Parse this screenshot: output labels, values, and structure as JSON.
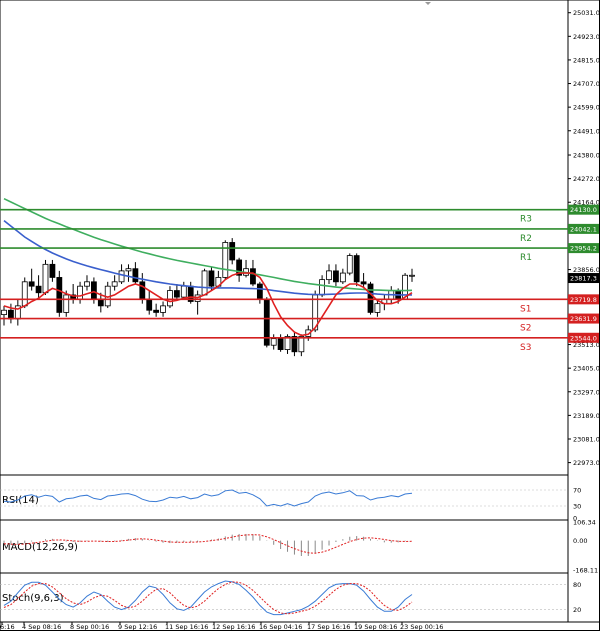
{
  "chart_data": {
    "type": "candlestick",
    "symbol": "",
    "price_axis": {
      "ylim": [
        22930,
        25080
      ],
      "ticks": [
        "25031.0",
        "24923.0",
        "24815.0",
        "24707.0",
        "24599.0",
        "24491.0",
        "24380.0",
        "24272.0",
        "24164.0",
        "23856.0",
        "23621.0",
        "23513.0",
        "23405.0",
        "23297.0",
        "23189.0",
        "23081.0",
        "22973.0"
      ]
    },
    "last_price": "23817.3",
    "levels": [
      {
        "name": "R3",
        "value": 24130.0,
        "label": "24130.0",
        "color": "#2e8b2e"
      },
      {
        "name": "R2",
        "value": 24042.1,
        "label": "24042.1",
        "color": "#2e8b2e"
      },
      {
        "name": "R1",
        "value": 23954.2,
        "label": "23954.2",
        "color": "#2e8b2e"
      },
      {
        "name": "S1",
        "value": 23719.8,
        "label": "23719.8",
        "color": "#d42020"
      },
      {
        "name": "S2",
        "value": 23631.9,
        "label": "23631.9",
        "color": "#d42020"
      },
      {
        "name": "S3",
        "value": 23544.0,
        "label": "23544.0",
        "color": "#d42020"
      }
    ],
    "time_axis": [
      "6:16",
      "4 Sep 08:16",
      "8 Sep 00:16",
      "9 Sep 12:16",
      "11 Sep 16:16",
      "12 Sep 16:16",
      "16 Sep 04:16",
      "17 Sep 16:16",
      "19 Sep 08:16",
      "23 Sep 00:16"
    ],
    "candles": [
      [
        23650,
        23690,
        23600,
        23670
      ],
      [
        23670,
        23700,
        23610,
        23630
      ],
      [
        23630,
        23720,
        23600,
        23690
      ],
      [
        23690,
        23820,
        23680,
        23800
      ],
      [
        23800,
        23860,
        23760,
        23780
      ],
      [
        23780,
        23830,
        23720,
        23750
      ],
      [
        23750,
        23900,
        23740,
        23880
      ],
      [
        23880,
        23900,
        23800,
        23820
      ],
      [
        23820,
        23850,
        23640,
        23660
      ],
      [
        23660,
        23760,
        23640,
        23740
      ],
      [
        23740,
        23790,
        23700,
        23720
      ],
      [
        23720,
        23800,
        23700,
        23780
      ],
      [
        23780,
        23830,
        23760,
        23800
      ],
      [
        23800,
        23820,
        23700,
        23720
      ],
      [
        23720,
        23750,
        23660,
        23690
      ],
      [
        23690,
        23800,
        23680,
        23780
      ],
      [
        23780,
        23830,
        23760,
        23800
      ],
      [
        23800,
        23880,
        23790,
        23850
      ],
      [
        23850,
        23880,
        23800,
        23860
      ],
      [
        23860,
        23890,
        23790,
        23800
      ],
      [
        23800,
        23840,
        23700,
        23720
      ],
      [
        23720,
        23760,
        23650,
        23670
      ],
      [
        23670,
        23700,
        23640,
        23660
      ],
      [
        23660,
        23710,
        23640,
        23690
      ],
      [
        23690,
        23780,
        23680,
        23760
      ],
      [
        23760,
        23790,
        23720,
        23730
      ],
      [
        23730,
        23800,
        23720,
        23780
      ],
      [
        23780,
        23800,
        23700,
        23710
      ],
      [
        23710,
        23760,
        23650,
        23740
      ],
      [
        23740,
        23860,
        23740,
        23850
      ],
      [
        23850,
        23870,
        23760,
        23780
      ],
      [
        23780,
        23850,
        23770,
        23820
      ],
      [
        23820,
        23990,
        23810,
        23980
      ],
      [
        23980,
        24000,
        23880,
        23900
      ],
      [
        23900,
        23910,
        23800,
        23830
      ],
      [
        23830,
        23900,
        23820,
        23860
      ],
      [
        23860,
        23900,
        23780,
        23790
      ],
      [
        23790,
        23800,
        23700,
        23720
      ],
      [
        23720,
        23730,
        23500,
        23510
      ],
      [
        23510,
        23560,
        23490,
        23540
      ],
      [
        23540,
        23560,
        23480,
        23490
      ],
      [
        23490,
        23560,
        23470,
        23550
      ],
      [
        23550,
        23570,
        23460,
        23480
      ],
      [
        23480,
        23560,
        23460,
        23550
      ],
      [
        23550,
        23600,
        23530,
        23580
      ],
      [
        23580,
        23760,
        23570,
        23740
      ],
      [
        23740,
        23830,
        23730,
        23810
      ],
      [
        23810,
        23880,
        23790,
        23850
      ],
      [
        23850,
        23880,
        23780,
        23800
      ],
      [
        23800,
        23860,
        23790,
        23840
      ],
      [
        23840,
        23930,
        23830,
        23920
      ],
      [
        23920,
        23930,
        23780,
        23800
      ],
      [
        23800,
        23840,
        23770,
        23790
      ],
      [
        23790,
        23800,
        23650,
        23660
      ],
      [
        23660,
        23720,
        23640,
        23700
      ],
      [
        23700,
        23740,
        23670,
        23720
      ],
      [
        23720,
        23780,
        23700,
        23760
      ],
      [
        23760,
        23770,
        23700,
        23720
      ],
      [
        23720,
        23840,
        23720,
        23830
      ],
      [
        23830,
        23860,
        23800,
        23830
      ]
    ],
    "ma_green": [
      24180,
      24165,
      24150,
      24135,
      24120,
      24105,
      24090,
      24077,
      24065,
      24052,
      24040,
      24028,
      24016,
      24004,
      23993,
      23983,
      23973,
      23963,
      23954,
      23945,
      23936,
      23928,
      23920,
      23912,
      23905,
      23898,
      23892,
      23886,
      23880,
      23874,
      23868,
      23862,
      23857,
      23852,
      23847,
      23842,
      23837,
      23832,
      23826,
      23820,
      23814,
      23808,
      23802,
      23797,
      23792,
      23788,
      23784,
      23780,
      23776,
      23773,
      23770,
      23767,
      23765,
      23763,
      23762,
      23761,
      23760,
      23760,
      23760,
      23761
    ],
    "ma_blue": [
      24080,
      24055,
      24030,
      24005,
      23985,
      23965,
      23948,
      23932,
      23918,
      23905,
      23893,
      23883,
      23873,
      23864,
      23856,
      23848,
      23840,
      23832,
      23825,
      23818,
      23812,
      23806,
      23800,
      23795,
      23790,
      23786,
      23782,
      23779,
      23776,
      23774,
      23772,
      23772,
      23772,
      23772,
      23771,
      23770,
      23769,
      23768,
      23765,
      23760,
      23756,
      23752,
      23748,
      23745,
      23743,
      23742,
      23742,
      23743,
      23744,
      23746,
      23748,
      23749,
      23749,
      23747,
      23744,
      23742,
      23741,
      23740,
      23740,
      23740
    ],
    "ma_red": [
      23690,
      23680,
      23675,
      23690,
      23710,
      23725,
      23750,
      23770,
      23760,
      23745,
      23735,
      23735,
      23745,
      23755,
      23740,
      23730,
      23740,
      23760,
      23780,
      23790,
      23780,
      23760,
      23740,
      23720,
      23710,
      23715,
      23725,
      23730,
      23728,
      23740,
      23760,
      23780,
      23810,
      23830,
      23840,
      23840,
      23840,
      23820,
      23770,
      23700,
      23640,
      23600,
      23570,
      23555,
      23560,
      23590,
      23640,
      23690,
      23740,
      23770,
      23790,
      23790,
      23775,
      23745,
      23715,
      23700,
      23700,
      23710,
      23730,
      23750
    ],
    "indicators": {
      "rsi": {
        "label": "RSI(14)",
        "ticks": [
          "70",
          "30",
          "0"
        ],
        "ylim": [
          0,
          100
        ],
        "values": [
          42,
          40,
          45,
          55,
          58,
          52,
          57,
          54,
          40,
          48,
          50,
          55,
          57,
          49,
          46,
          55,
          57,
          60,
          61,
          56,
          47,
          42,
          41,
          45,
          52,
          50,
          54,
          48,
          51,
          60,
          55,
          58,
          68,
          70,
          62,
          64,
          58,
          48,
          30,
          34,
          30,
          36,
          30,
          36,
          40,
          55,
          62,
          65,
          60,
          63,
          68,
          56,
          55,
          45,
          50,
          52,
          56,
          53,
          60,
          62
        ]
      },
      "macd": {
        "label": "MACD(12,26,9)",
        "ticks": [
          "106.34",
          "0.00",
          "-168.11"
        ],
        "ylim": [
          -168.11,
          106.34
        ],
        "hist": [
          -20,
          -25,
          -25,
          -15,
          -5,
          0,
          8,
          10,
          2,
          -5,
          -8,
          -6,
          -2,
          0,
          -5,
          -8,
          -4,
          4,
          10,
          14,
          10,
          2,
          -6,
          -12,
          -14,
          -12,
          -8,
          -8,
          -8,
          0,
          6,
          12,
          24,
          34,
          38,
          38,
          36,
          26,
          2,
          -24,
          -48,
          -64,
          -80,
          -88,
          -88,
          -74,
          -52,
          -28,
          -8,
          8,
          22,
          26,
          22,
          10,
          -2,
          -10,
          -12,
          -10,
          -4,
          0
        ],
        "signal": [
          -18,
          -20,
          -22,
          -20,
          -15,
          -10,
          -4,
          2,
          4,
          2,
          -2,
          -4,
          -4,
          -3,
          -4,
          -5,
          -5,
          -2,
          3,
          8,
          10,
          8,
          3,
          -3,
          -8,
          -10,
          -10,
          -9,
          -8,
          -5,
          0,
          5,
          12,
          20,
          28,
          32,
          34,
          32,
          22,
          6,
          -12,
          -30,
          -46,
          -60,
          -70,
          -72,
          -66,
          -54,
          -38,
          -22,
          -6,
          6,
          14,
          16,
          12,
          6,
          0,
          -4,
          -5,
          -4
        ]
      },
      "stoch": {
        "label": "Stoch(9,6,3)",
        "ticks": [
          "80",
          "20"
        ],
        "ylim": [
          0,
          100
        ],
        "k": [
          30,
          40,
          60,
          78,
          85,
          85,
          78,
          62,
          45,
          32,
          26,
          36,
          52,
          62,
          56,
          40,
          26,
          20,
          26,
          42,
          62,
          76,
          72,
          56,
          36,
          22,
          18,
          26,
          44,
          62,
          74,
          82,
          88,
          86,
          80,
          66,
          50,
          30,
          14,
          8,
          8,
          12,
          16,
          20,
          28,
          40,
          56,
          72,
          80,
          82,
          82,
          78,
          64,
          44,
          26,
          16,
          16,
          26,
          44,
          56
        ],
        "d": [
          25,
          32,
          46,
          62,
          76,
          82,
          82,
          74,
          60,
          46,
          36,
          32,
          38,
          48,
          54,
          52,
          42,
          30,
          24,
          28,
          40,
          56,
          68,
          70,
          60,
          44,
          30,
          24,
          28,
          40,
          56,
          70,
          80,
          86,
          85,
          78,
          66,
          50,
          34,
          20,
          12,
          10,
          12,
          16,
          20,
          28,
          40,
          54,
          68,
          78,
          82,
          82,
          76,
          64,
          46,
          30,
          20,
          18,
          26,
          38
        ]
      }
    }
  }
}
